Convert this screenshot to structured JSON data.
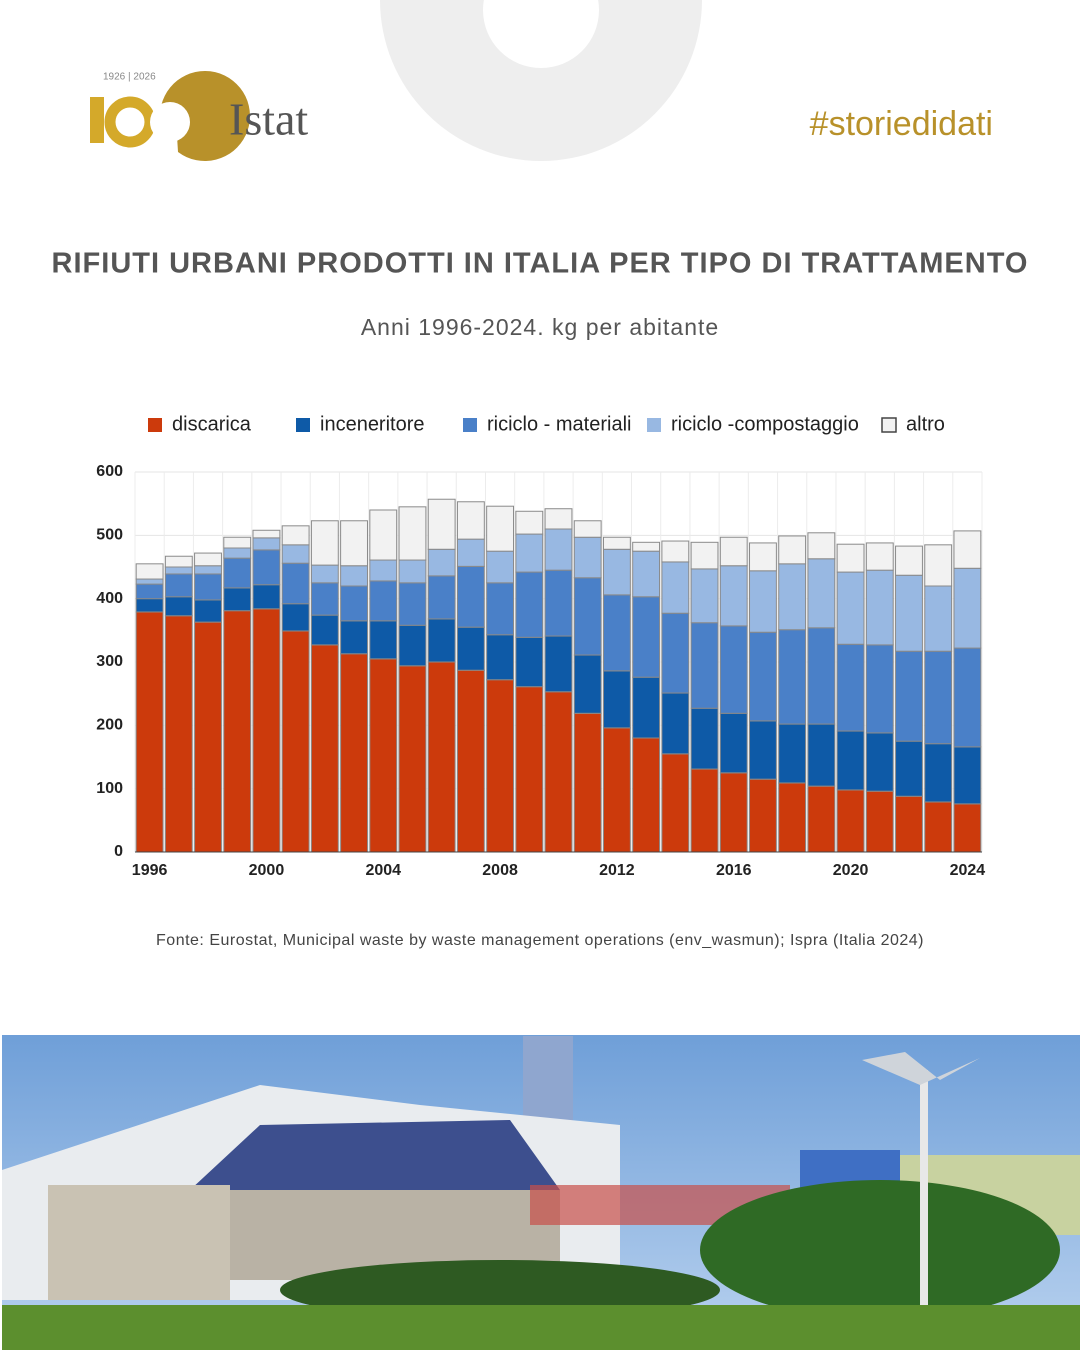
{
  "logo": {
    "years": "1926 | 2026",
    "name": "Istat"
  },
  "hashtag": "#storiedidati",
  "chart_data": {
    "type": "stacked-bar",
    "title": "RIFIUTI URBANI PRODOTTI IN ITALIA PER TIPO DI TRATTAMENTO",
    "subtitle": "Anni 1996-2024. kg per abitante",
    "source": "Fonte: Eurostat, Municipal waste by waste management operations (env_wasmun); Ispra (Italia 2024)",
    "categories": [
      "1996",
      null,
      null,
      null,
      "2000",
      null,
      null,
      null,
      "2004",
      null,
      null,
      null,
      "2008",
      null,
      null,
      null,
      "2012",
      null,
      null,
      null,
      "2016",
      null,
      null,
      null,
      "2020",
      null,
      null,
      null,
      "2024"
    ],
    "series": [
      {
        "name": "discarica",
        "color": "#cc3a0c",
        "values": [
          379,
          373,
          363,
          381,
          384,
          349,
          327,
          313,
          305,
          294,
          300,
          287,
          272,
          261,
          253,
          219,
          196,
          180,
          155,
          131,
          125,
          115,
          109,
          104,
          98,
          96,
          88,
          79,
          76
        ]
      },
      {
        "name": "inceneritore",
        "color": "#0e5aa7",
        "values": [
          21,
          30,
          35,
          36,
          38,
          43,
          47,
          52,
          60,
          64,
          68,
          68,
          71,
          78,
          88,
          92,
          90,
          96,
          96,
          96,
          94,
          92,
          93,
          98,
          93,
          92,
          87,
          92,
          90
        ]
      },
      {
        "name": "riciclo - materiali",
        "color": "#4a80c8",
        "values": [
          23,
          36,
          41,
          47,
          55,
          64,
          51,
          55,
          63,
          67,
          68,
          96,
          82,
          103,
          104,
          122,
          120,
          127,
          126,
          135,
          138,
          140,
          149,
          152,
          137,
          139,
          142,
          146,
          156
        ]
      },
      {
        "name": "riciclo -compostaggio",
        "color": "#98b8e2",
        "values": [
          8,
          11,
          13,
          16,
          19,
          29,
          28,
          32,
          33,
          36,
          42,
          43,
          50,
          60,
          65,
          64,
          72,
          72,
          81,
          85,
          95,
          97,
          104,
          109,
          114,
          118,
          120,
          103,
          126
        ]
      },
      {
        "name": "altro",
        "color": "#f2f2f2",
        "values": [
          24,
          17,
          20,
          17,
          12,
          30,
          70,
          71,
          79,
          84,
          79,
          59,
          71,
          36,
          32,
          26,
          19,
          14,
          33,
          42,
          45,
          44,
          44,
          41,
          44,
          43,
          46,
          65,
          59
        ]
      }
    ],
    "ylim": [
      0,
      600
    ],
    "yticks": [
      0,
      100,
      200,
      300,
      400,
      500,
      600
    ],
    "grid": true
  }
}
